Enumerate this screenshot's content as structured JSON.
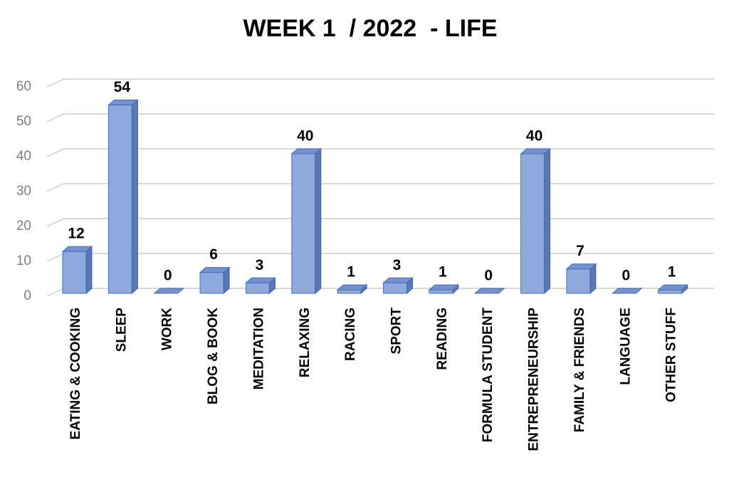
{
  "chart_data": {
    "type": "bar3d",
    "title": "WEEK 1  / 2022  - LIFE",
    "categories": [
      "EATING & COOKING",
      "SLEEP",
      "WORK",
      "BLOG & BOOK",
      "MEDITATION",
      "RELAXING",
      "RACING",
      "SPORT",
      "READING",
      "FORMULA STUDENT",
      "ENTREPRENEURSHIP",
      "FAMILY & FRIENDS",
      "LANGUAGE",
      "OTHER STUFF"
    ],
    "values": [
      12,
      54,
      0,
      6,
      3,
      40,
      1,
      3,
      1,
      0,
      40,
      7,
      0,
      1
    ],
    "color": "#8ea9db",
    "ylim": [
      0,
      60
    ],
    "yticks": [
      0,
      10,
      20,
      30,
      40,
      50,
      60
    ],
    "grid": true
  }
}
